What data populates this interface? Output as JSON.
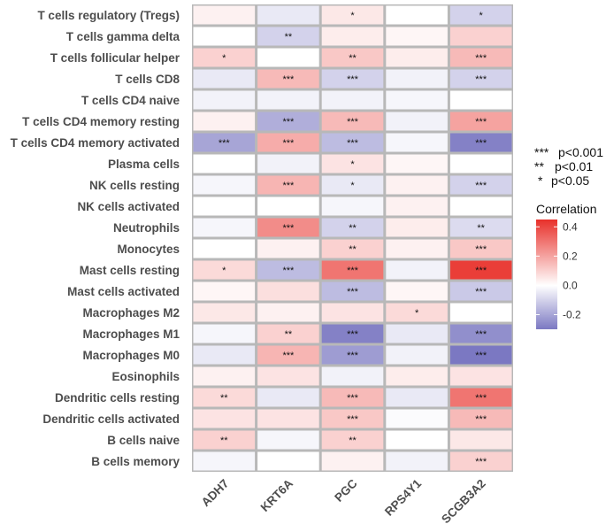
{
  "chart_data": {
    "type": "heatmap",
    "title": "",
    "xlabel": "",
    "ylabel": "",
    "columns": [
      "ADH7",
      "KRT6A",
      "PGC",
      "RPS4Y1",
      "SCGB3A2"
    ],
    "rows": [
      "T cells regulatory (Tregs)",
      "T cells gamma delta",
      "T cells follicular helper",
      "T cells CD8",
      "T cells CD4 naive",
      "T cells CD4 memory resting",
      "T cells CD4 memory activated",
      "Plasma cells",
      "NK cells resting",
      "NK cells activated",
      "Neutrophils",
      "Monocytes",
      "Mast cells resting",
      "Mast cells activated",
      "Macrophages M2",
      "Macrophages M1",
      "Macrophages M0",
      "Eosinophils",
      "Dendritic cells resting",
      "Dendritic cells activated",
      "B cells naive",
      "B cells memory"
    ],
    "values": [
      [
        0.03,
        -0.05,
        0.05,
        0.0,
        -0.1
      ],
      [
        0.0,
        -0.1,
        0.04,
        0.02,
        0.1
      ],
      [
        0.1,
        0.0,
        0.12,
        0.04,
        0.15
      ],
      [
        -0.05,
        0.15,
        -0.1,
        -0.03,
        -0.1
      ],
      [
        -0.03,
        -0.03,
        -0.03,
        -0.02,
        0.0
      ],
      [
        0.03,
        -0.18,
        0.15,
        -0.03,
        0.2
      ],
      [
        -0.2,
        0.18,
        -0.15,
        -0.02,
        -0.28
      ],
      [
        0.0,
        -0.03,
        0.06,
        0.02,
        0.0
      ],
      [
        -0.02,
        0.16,
        -0.05,
        0.03,
        -0.1
      ],
      [
        0.0,
        0.0,
        -0.02,
        0.03,
        0.0
      ],
      [
        -0.02,
        0.25,
        -0.1,
        0.04,
        -0.08
      ],
      [
        0.0,
        0.03,
        0.1,
        0.03,
        0.12
      ],
      [
        0.08,
        -0.15,
        0.3,
        -0.03,
        0.42
      ],
      [
        0.02,
        0.07,
        -0.15,
        0.02,
        -0.12
      ],
      [
        0.05,
        0.03,
        0.06,
        0.08,
        0.0
      ],
      [
        -0.02,
        0.1,
        -0.28,
        -0.05,
        -0.25
      ],
      [
        -0.05,
        0.16,
        -0.22,
        -0.03,
        -0.3
      ],
      [
        0.03,
        0.06,
        -0.03,
        0.04,
        0.06
      ],
      [
        0.08,
        -0.05,
        0.15,
        -0.05,
        0.3
      ],
      [
        0.06,
        0.06,
        0.12,
        -0.01,
        0.15
      ],
      [
        0.1,
        -0.02,
        0.1,
        0.0,
        0.05
      ],
      [
        -0.02,
        0.0,
        0.03,
        -0.03,
        0.1
      ]
    ],
    "stars": [
      [
        "",
        "",
        "*",
        "",
        "*"
      ],
      [
        "",
        "**",
        "",
        "",
        ""
      ],
      [
        "*",
        "",
        "**",
        "",
        "***"
      ],
      [
        "",
        "***",
        "***",
        "",
        "***"
      ],
      [
        "",
        "",
        "",
        "",
        ""
      ],
      [
        "",
        "***",
        "***",
        "",
        "***"
      ],
      [
        "***",
        "***",
        "***",
        "",
        "***"
      ],
      [
        "",
        "",
        "*",
        "",
        ""
      ],
      [
        "",
        "***",
        "*",
        "",
        "***"
      ],
      [
        "",
        "",
        "",
        "",
        ""
      ],
      [
        "",
        "***",
        "**",
        "",
        "**"
      ],
      [
        "",
        "",
        "**",
        "",
        "***"
      ],
      [
        "*",
        "***",
        "***",
        "",
        "***"
      ],
      [
        "",
        "",
        "***",
        "",
        "***"
      ],
      [
        "",
        "",
        "",
        "*",
        ""
      ],
      [
        "",
        "**",
        "***",
        "",
        "***"
      ],
      [
        "",
        "***",
        "***",
        "",
        "***"
      ],
      [
        "",
        "",
        "",
        "",
        ""
      ],
      [
        "**",
        "",
        "***",
        "",
        "***"
      ],
      [
        "",
        "",
        "***",
        "",
        "***"
      ],
      [
        "**",
        "",
        "**",
        "",
        ""
      ],
      [
        "",
        "",
        "",
        "",
        "***"
      ]
    ],
    "significance_legend": [
      {
        "stars": "***",
        "label": "p<0.001"
      },
      {
        "stars": "**",
        "label": "p<0.01"
      },
      {
        "stars": "*",
        "label": "p<0.05"
      }
    ],
    "colorbar": {
      "title": "Correlation",
      "range": [
        -0.3,
        0.45
      ],
      "ticks": [
        0.4,
        0.2,
        0.0,
        -0.2
      ],
      "tick_labels": [
        "0.4",
        "0.2",
        "0.0",
        "-0.2"
      ],
      "low_color": "#7b78c2",
      "mid_color": "#ffffff",
      "high_color": "#e8302a"
    },
    "grid_color": "#b8b8b8"
  }
}
